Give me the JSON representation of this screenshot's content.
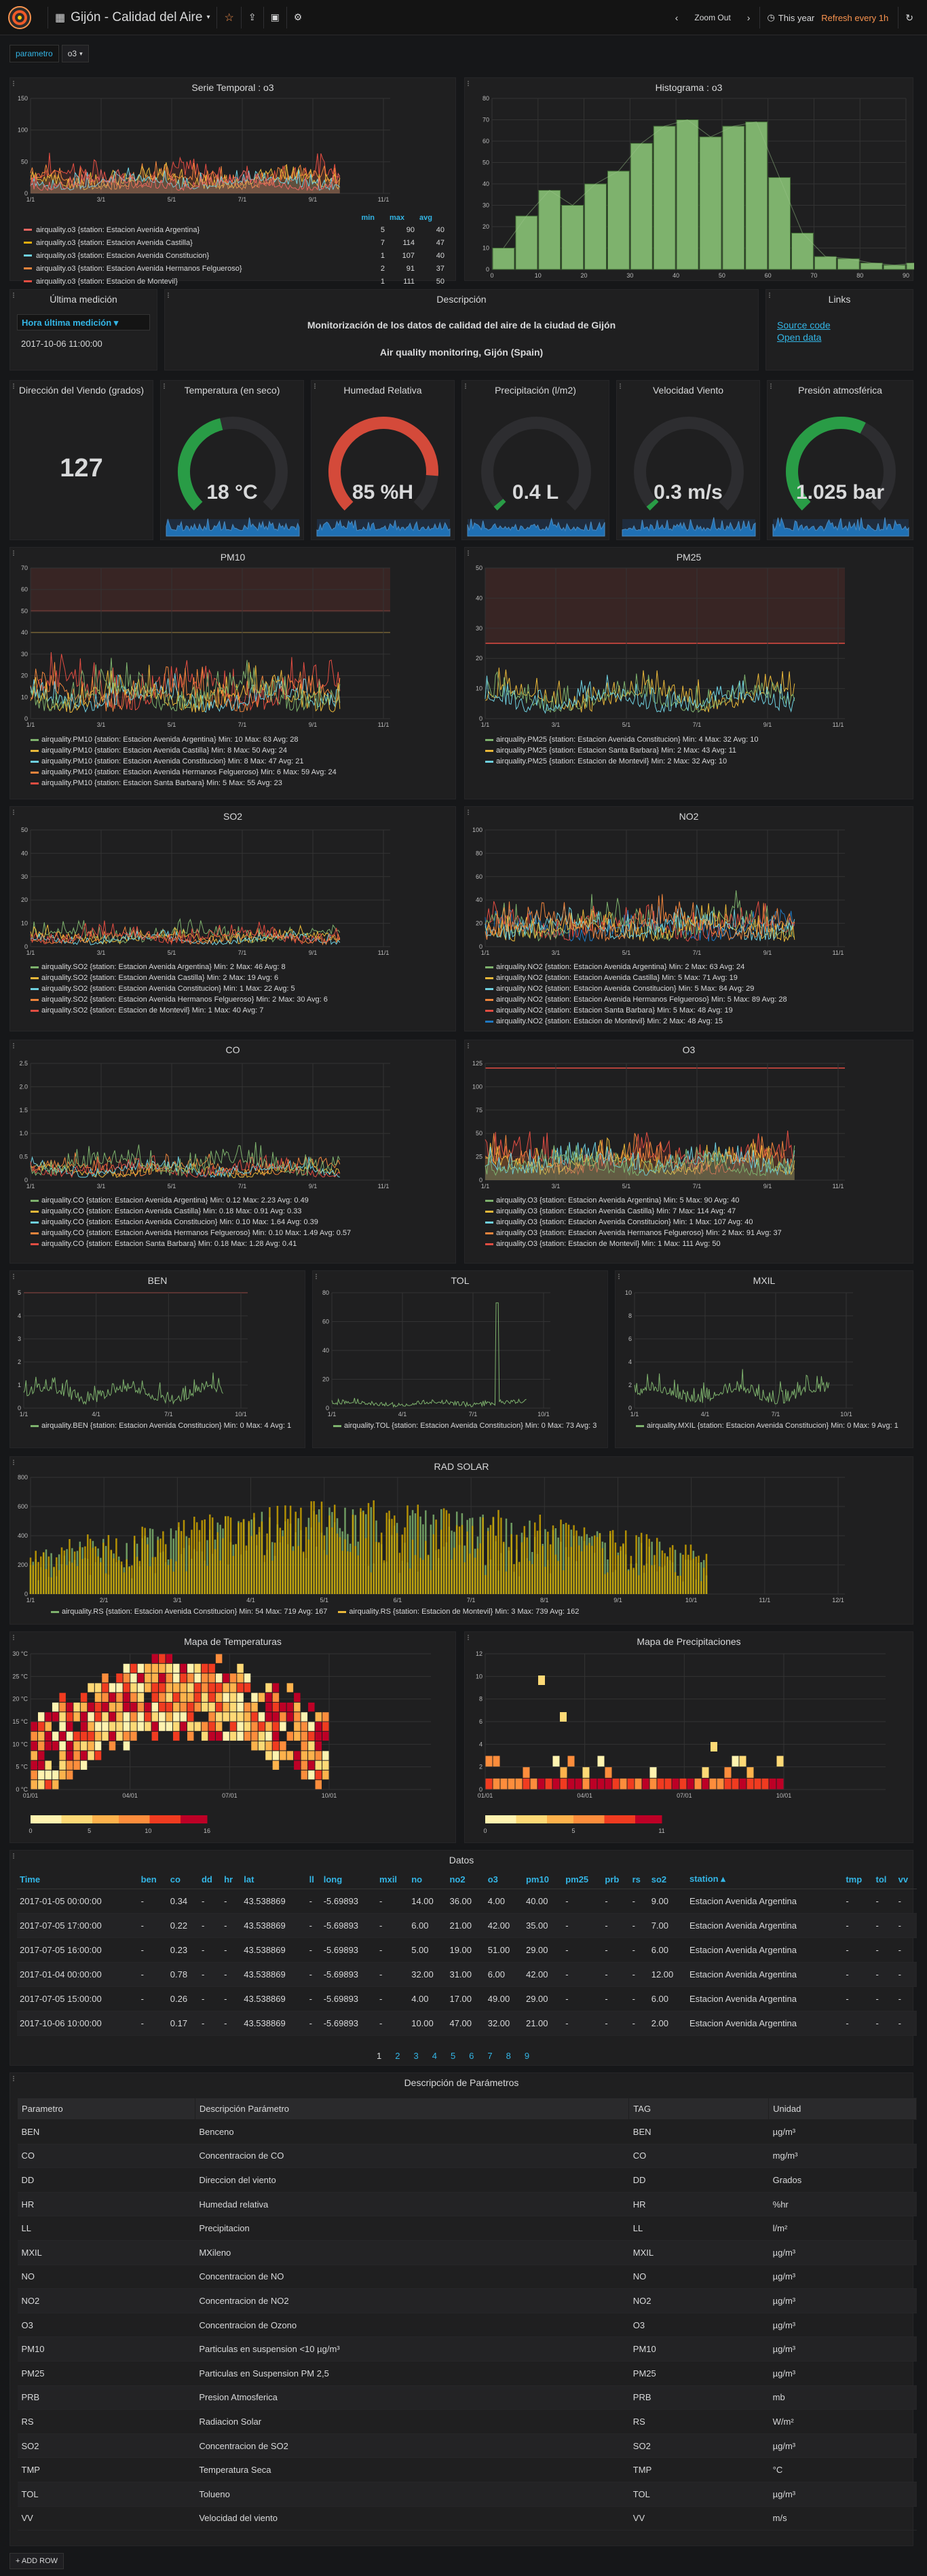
{
  "nav": {
    "title": "Gijón - Calidad del Aire",
    "zoom": "Zoom Out",
    "range": "This year",
    "refresh": "Refresh every 1h"
  },
  "vars": {
    "label": "parametro",
    "value": "o3"
  },
  "panels": {
    "serie": "Serie Temporal : o3",
    "hist": "Histograma : o3",
    "ultima": "Última medición",
    "desc": "Descripción",
    "links": "Links",
    "dir": "Dirección del Viendo (grados)",
    "temp": "Temperatura (en seco)",
    "hum": "Humedad Relativa",
    "prec": "Precipitación (l/m2)",
    "vel": "Velocidad Viento",
    "pres": "Presión atmosférica",
    "pm10": "PM10",
    "pm25": "PM25",
    "so2": "SO2",
    "no2": "NO2",
    "co": "CO",
    "o3": "O3",
    "ben": "BEN",
    "tol": "TOL",
    "mxil": "MXIL",
    "rad": "RAD SOLAR",
    "maptemp": "Mapa de Temperaturas",
    "mapprec": "Mapa de Precipitaciones",
    "datos": "Datos",
    "params": "Descripción de Parámetros"
  },
  "ultima": {
    "dropdown": "Hora última medición ▾",
    "value": "2017-10-06 11:00:00"
  },
  "desc": {
    "line1": "Monitorización de los datos de calidad del aire de la ciudad de Gijón",
    "line2": "Air quality monitoring, Gijón (Spain)"
  },
  "links": {
    "a": "Source code",
    "b": "Open data"
  },
  "stats": {
    "dir": "127",
    "temp": "18 °C",
    "hum": "85 %H",
    "prec": "0.4 L",
    "vel": "0.3 m/s",
    "pres": "1.025 bar",
    "temp_frac": 0.45,
    "hum_frac": 0.85,
    "prec_frac": 0.02,
    "vel_frac": 0.02,
    "pres_frac": 0.6
  },
  "serie_table": {
    "headers": [
      "min",
      "max",
      "avg"
    ],
    "rows": [
      {
        "name": "airquality.o3 {station: Estacion Avenida Argentina}",
        "min": "5",
        "max": "90",
        "avg": "40",
        "color": "#ea6460"
      },
      {
        "name": "airquality.o3 {station: Estacion Avenida Castilla}",
        "min": "7",
        "max": "114",
        "avg": "47",
        "color": "#e5ac0e"
      },
      {
        "name": "airquality.o3 {station: Estacion Avenida Constitucion}",
        "min": "1",
        "max": "107",
        "avg": "40",
        "color": "#6ed0e0"
      },
      {
        "name": "airquality.o3 {station: Estacion Avenida Hermanos Felgueroso}",
        "min": "2",
        "max": "91",
        "avg": "37",
        "color": "#ef843c"
      },
      {
        "name": "airquality.o3 {station: Estacion de Montevil}",
        "min": "1",
        "max": "111",
        "avg": "50",
        "color": "#e24d42"
      }
    ]
  },
  "legends": {
    "pm10": [
      [
        "#7eb26d",
        "airquality.PM10 {station: Estacion Avenida Argentina}  Min: 10  Max: 63  Avg: 28"
      ],
      [
        "#eab839",
        "airquality.PM10 {station: Estacion Avenida Castilla}  Min: 8  Max: 50  Avg: 24"
      ],
      [
        "#6ed0e0",
        "airquality.PM10 {station: Estacion Avenida Constitucion}  Min: 8  Max: 47  Avg: 21"
      ],
      [
        "#ef843c",
        "airquality.PM10 {station: Estacion Avenida Hermanos Felgueroso}  Min: 6  Max: 59  Avg: 24"
      ],
      [
        "#e24d42",
        "airquality.PM10 {station: Estacion Santa Barbara}  Min: 5  Max: 55  Avg: 23"
      ]
    ],
    "pm25": [
      [
        "#7eb26d",
        "airquality.PM25 {station: Estacion Avenida Constitucion}  Min: 4  Max: 32  Avg: 10"
      ],
      [
        "#eab839",
        "airquality.PM25 {station: Estacion Santa Barbara}  Min: 2  Max: 43  Avg: 11"
      ],
      [
        "#6ed0e0",
        "airquality.PM25 {station: Estacion de Montevil}  Min: 2  Max: 32  Avg: 10"
      ]
    ],
    "so2": [
      [
        "#7eb26d",
        "airquality.SO2 {station: Estacion Avenida Argentina}  Min: 2  Max: 46  Avg: 8"
      ],
      [
        "#eab839",
        "airquality.SO2 {station: Estacion Avenida Castilla}  Min: 2  Max: 19  Avg: 6"
      ],
      [
        "#6ed0e0",
        "airquality.SO2 {station: Estacion Avenida Constitucion}  Min: 1  Max: 22  Avg: 5"
      ],
      [
        "#ef843c",
        "airquality.SO2 {station: Estacion Avenida Hermanos Felgueroso}  Min: 2  Max: 30  Avg: 6"
      ],
      [
        "#e24d42",
        "airquality.SO2 {station: Estacion de Montevil}  Min: 1  Max: 40  Avg: 7"
      ]
    ],
    "no2": [
      [
        "#7eb26d",
        "airquality.NO2 {station: Estacion Avenida Argentina}  Min: 2  Max: 63  Avg: 24"
      ],
      [
        "#eab839",
        "airquality.NO2 {station: Estacion Avenida Castilla}  Min: 5  Max: 71  Avg: 19"
      ],
      [
        "#6ed0e0",
        "airquality.NO2 {station: Estacion Avenida Constitucion}  Min: 5  Max: 84  Avg: 29"
      ],
      [
        "#ef843c",
        "airquality.NO2 {station: Estacion Avenida Hermanos Felgueroso}  Min: 5  Max: 89  Avg: 28"
      ],
      [
        "#e24d42",
        "airquality.NO2 {station: Estacion Santa Barbara}  Min: 5  Max: 48  Avg: 19"
      ],
      [
        "#1f78c1",
        "airquality.NO2 {station: Estacion de Montevil}  Min: 2  Max: 48  Avg: 15"
      ]
    ],
    "co": [
      [
        "#7eb26d",
        "airquality.CO {station: Estacion Avenida Argentina}  Min: 0.12  Max: 2.23  Avg: 0.49"
      ],
      [
        "#eab839",
        "airquality.CO {station: Estacion Avenida Castilla}  Min: 0.18  Max: 0.91  Avg: 0.33"
      ],
      [
        "#6ed0e0",
        "airquality.CO {station: Estacion Avenida Constitucion}  Min: 0.10  Max: 1.64  Avg: 0.39"
      ],
      [
        "#ef843c",
        "airquality.CO {station: Estacion Avenida Hermanos Felgueroso}  Min: 0.10  Max: 1.49  Avg: 0.57"
      ],
      [
        "#e24d42",
        "airquality.CO {station: Estacion Santa Barbara}  Min: 0.18  Max: 1.28  Avg: 0.41"
      ]
    ],
    "o3": [
      [
        "#7eb26d",
        "airquality.O3 {station: Estacion Avenida Argentina}  Min: 5  Max: 90  Avg: 40"
      ],
      [
        "#eab839",
        "airquality.O3 {station: Estacion Avenida Castilla}  Min: 7  Max: 114  Avg: 47"
      ],
      [
        "#6ed0e0",
        "airquality.O3 {station: Estacion Avenida Constitucion}  Min: 1  Max: 107  Avg: 40"
      ],
      [
        "#ef843c",
        "airquality.O3 {station: Estacion Avenida Hermanos Felgueroso}  Min: 2  Max: 91  Avg: 37"
      ],
      [
        "#e24d42",
        "airquality.O3 {station: Estacion de Montevil}  Min: 1  Max: 111  Avg: 50"
      ]
    ],
    "ben": [
      [
        "#7eb26d",
        "airquality.BEN {station: Estacion Avenida Constitucion}  Min: 0  Max: 4  Avg: 1"
      ]
    ],
    "tol": [
      [
        "#7eb26d",
        "airquality.TOL {station: Estacion Avenida Constitucion}  Min: 0  Max: 73  Avg: 3"
      ]
    ],
    "mxil": [
      [
        "#7eb26d",
        "airquality.MXIL {station: Estacion Avenida Constitucion}  Min: 0  Max: 9  Avg: 1"
      ]
    ],
    "rad": [
      [
        "#7eb26d",
        "airquality.RS {station: Estacion Avenida Constitucion}  Min: 54  Max: 719  Avg: 167"
      ],
      [
        "#eab839",
        "airquality.RS {station: Estacion de Montevil}  Min: 3  Max: 739  Avg: 162"
      ]
    ]
  },
  "chart_data": [
    {
      "id": "serie",
      "type": "area",
      "title": "Serie Temporal : o3",
      "ylim": [
        0,
        150
      ],
      "yticks": [
        "0",
        "50",
        "100",
        "150"
      ],
      "xticks": [
        "1/1",
        "3/1",
        "5/1",
        "7/1",
        "9/1",
        "11/1"
      ],
      "series": [
        {
          "name": "Estacion Avenida Argentina",
          "min": 5,
          "max": 90,
          "avg": 40
        },
        {
          "name": "Estacion Avenida Castilla",
          "min": 7,
          "max": 114,
          "avg": 47
        },
        {
          "name": "Estacion Avenida Constitucion",
          "min": 1,
          "max": 107,
          "avg": 40
        },
        {
          "name": "Estacion Avenida Hermanos Felgueroso",
          "min": 2,
          "max": 91,
          "avg": 37
        },
        {
          "name": "Estacion de Montevil",
          "min": 1,
          "max": 111,
          "avg": 50
        }
      ]
    },
    {
      "id": "hist",
      "type": "bar",
      "title": "Histograma : o3",
      "ylim": [
        0,
        80
      ],
      "yticks": [
        "0",
        "10",
        "20",
        "30",
        "40",
        "50",
        "60",
        "70",
        "80"
      ],
      "xticks": [
        "0",
        "10",
        "20",
        "30",
        "40",
        "50",
        "60",
        "70",
        "80",
        "90"
      ],
      "bins": [
        0,
        5,
        10,
        15,
        20,
        25,
        30,
        35,
        40,
        45,
        50,
        55,
        60,
        65,
        70,
        75,
        80,
        85,
        90
      ],
      "values": [
        10,
        25,
        37,
        30,
        40,
        46,
        59,
        67,
        70,
        62,
        67,
        69,
        43,
        17,
        6,
        5,
        3,
        2,
        3
      ]
    },
    {
      "id": "maptemp",
      "type": "heatmap",
      "title": "Mapa de Temperaturas",
      "yticks": [
        "0 °C",
        "5 °C",
        "10 °C",
        "15 °C",
        "20 °C",
        "25 °C",
        "30 °C"
      ],
      "xticks": [
        "01/01",
        "04/01",
        "07/01",
        "10/01"
      ],
      "scale": [
        "0",
        "5",
        "10",
        "16"
      ]
    },
    {
      "id": "mapprec",
      "type": "heatmap",
      "title": "Mapa de Precipitaciones",
      "yticks": [
        "0",
        "2",
        "4",
        "6",
        "8",
        "10",
        "12"
      ],
      "xticks": [
        "01/01",
        "04/01",
        "07/01",
        "10/01"
      ],
      "scale": [
        "0",
        "5",
        "11"
      ]
    }
  ],
  "datos": {
    "headers": [
      "Time",
      "ben",
      "co",
      "dd",
      "hr",
      "lat",
      "ll",
      "long",
      "mxil",
      "no",
      "no2",
      "o3",
      "pm10",
      "pm25",
      "prb",
      "rs",
      "so2",
      "station ▴",
      "tmp",
      "tol",
      "vv"
    ],
    "rows": [
      [
        "2017-01-05 00:00:00",
        "-",
        "0.34",
        "-",
        "-",
        "43.538869",
        "-",
        "-5.69893",
        "-",
        "14.00",
        "36.00",
        "4.00",
        "40.00",
        "-",
        "-",
        "-",
        "9.00",
        "Estacion Avenida Argentina",
        "-",
        "-",
        "-"
      ],
      [
        "2017-07-05 17:00:00",
        "-",
        "0.22",
        "-",
        "-",
        "43.538869",
        "-",
        "-5.69893",
        "-",
        "6.00",
        "21.00",
        "42.00",
        "35.00",
        "-",
        "-",
        "-",
        "7.00",
        "Estacion Avenida Argentina",
        "-",
        "-",
        "-"
      ],
      [
        "2017-07-05 16:00:00",
        "-",
        "0.23",
        "-",
        "-",
        "43.538869",
        "-",
        "-5.69893",
        "-",
        "5.00",
        "19.00",
        "51.00",
        "29.00",
        "-",
        "-",
        "-",
        "6.00",
        "Estacion Avenida Argentina",
        "-",
        "-",
        "-"
      ],
      [
        "2017-01-04 00:00:00",
        "-",
        "0.78",
        "-",
        "-",
        "43.538869",
        "-",
        "-5.69893",
        "-",
        "32.00",
        "31.00",
        "6.00",
        "42.00",
        "-",
        "-",
        "-",
        "12.00",
        "Estacion Avenida Argentina",
        "-",
        "-",
        "-"
      ],
      [
        "2017-07-05 15:00:00",
        "-",
        "0.26",
        "-",
        "-",
        "43.538869",
        "-",
        "-5.69893",
        "-",
        "4.00",
        "17.00",
        "49.00",
        "29.00",
        "-",
        "-",
        "-",
        "6.00",
        "Estacion Avenida Argentina",
        "-",
        "-",
        "-"
      ],
      [
        "2017-10-06 10:00:00",
        "-",
        "0.17",
        "-",
        "-",
        "43.538869",
        "-",
        "-5.69893",
        "-",
        "10.00",
        "47.00",
        "32.00",
        "21.00",
        "-",
        "-",
        "-",
        "2.00",
        "Estacion Avenida Argentina",
        "-",
        "-",
        "-"
      ]
    ],
    "pages": [
      "1",
      "2",
      "3",
      "4",
      "5",
      "6",
      "7",
      "8",
      "9"
    ]
  },
  "params": {
    "headers": [
      "Parametro",
      "Descripción Parámetro",
      "TAG",
      "Unidad"
    ],
    "rows": [
      [
        "BEN",
        "Benceno",
        "BEN",
        "µg/m³"
      ],
      [
        "CO",
        "Concentracion de CO",
        "CO",
        "mg/m³"
      ],
      [
        "DD",
        "Direccion del viento",
        "DD",
        "Grados"
      ],
      [
        "HR",
        "Humedad relativa",
        "HR",
        "%hr"
      ],
      [
        "LL",
        "Precipitacion",
        "LL",
        "l/m²"
      ],
      [
        "MXIL",
        "MXileno",
        "MXIL",
        "µg/m³"
      ],
      [
        "NO",
        "Concentracion de NO",
        "NO",
        "µg/m³"
      ],
      [
        "NO2",
        "Concentracion de NO2",
        "NO2",
        "µg/m³"
      ],
      [
        "O3",
        "Concentracion de Ozono",
        "O3",
        "µg/m³"
      ],
      [
        "PM10",
        "Particulas en suspension <10 µg/m³",
        "PM10",
        "µg/m³"
      ],
      [
        "PM25",
        "Particulas en Suspension PM 2,5",
        "PM25",
        "µg/m³"
      ],
      [
        "PRB",
        "Presion Atmosferica",
        "PRB",
        "mb"
      ],
      [
        "RS",
        "Radiacion Solar",
        "RS",
        "W/m²"
      ],
      [
        "SO2",
        "Concentracion de SO2",
        "SO2",
        "µg/m³"
      ],
      [
        "TMP",
        "Temperatura Seca",
        "TMP",
        "°C"
      ],
      [
        "TOL",
        "Tolueno",
        "TOL",
        "µg/m³"
      ],
      [
        "VV",
        "Velocidad del viento",
        "VV",
        "m/s"
      ]
    ]
  },
  "addrow": "+ ADD ROW",
  "colors": {
    "accent": "#33b5e5",
    "orange": "#f9934e",
    "green": "#299c46",
    "red": "#d44a3a"
  }
}
